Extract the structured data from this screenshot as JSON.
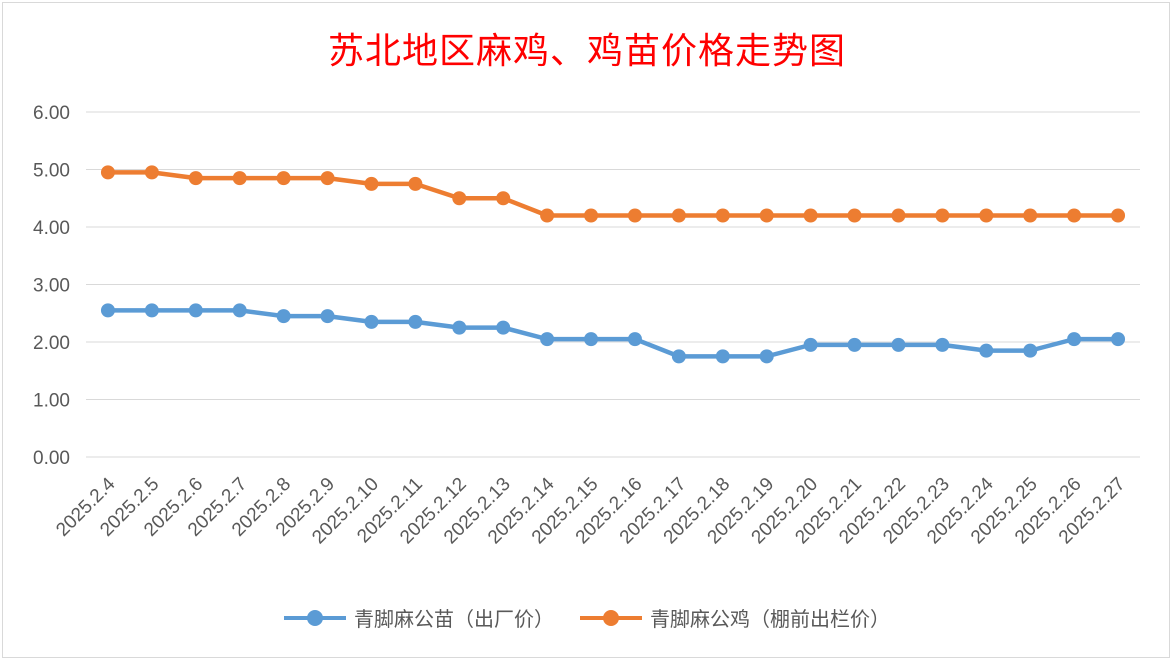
{
  "chart_data": {
    "type": "line",
    "title": "苏北地区麻鸡、鸡苗价格走势图",
    "xlabel": "",
    "ylabel": "",
    "ylim": [
      0,
      6
    ],
    "yticks": [
      "0.00",
      "1.00",
      "2.00",
      "3.00",
      "4.00",
      "5.00",
      "6.00"
    ],
    "grid": true,
    "legend_position": "bottom",
    "categories": [
      "2025.2.4",
      "2025.2.5",
      "2025.2.6",
      "2025.2.7",
      "2025.2.8",
      "2025.2.9",
      "2025.2.10",
      "2025.2.11",
      "2025.2.12",
      "2025.2.13",
      "2025.2.14",
      "2025.2.15",
      "2025.2.16",
      "2025.2.17",
      "2025.2.18",
      "2025.2.19",
      "2025.2.20",
      "2025.2.21",
      "2025.2.22",
      "2025.2.23",
      "2025.2.24",
      "2025.2.25",
      "2025.2.26",
      "2025.2.27"
    ],
    "series": [
      {
        "name": "青脚麻公苗（出厂价）",
        "color": "#5b9bd5",
        "values": [
          2.55,
          2.55,
          2.55,
          2.55,
          2.45,
          2.45,
          2.35,
          2.35,
          2.25,
          2.25,
          2.05,
          2.05,
          2.05,
          1.75,
          1.75,
          1.75,
          1.95,
          1.95,
          1.95,
          1.95,
          1.85,
          1.85,
          2.05,
          2.05
        ]
      },
      {
        "name": "青脚麻公鸡（棚前出栏价）",
        "color": "#ed7d31",
        "values": [
          4.95,
          4.95,
          4.85,
          4.85,
          4.85,
          4.85,
          4.75,
          4.75,
          4.5,
          4.5,
          4.2,
          4.2,
          4.2,
          4.2,
          4.2,
          4.2,
          4.2,
          4.2,
          4.2,
          4.2,
          4.2,
          4.2,
          4.2,
          4.2
        ]
      }
    ]
  }
}
